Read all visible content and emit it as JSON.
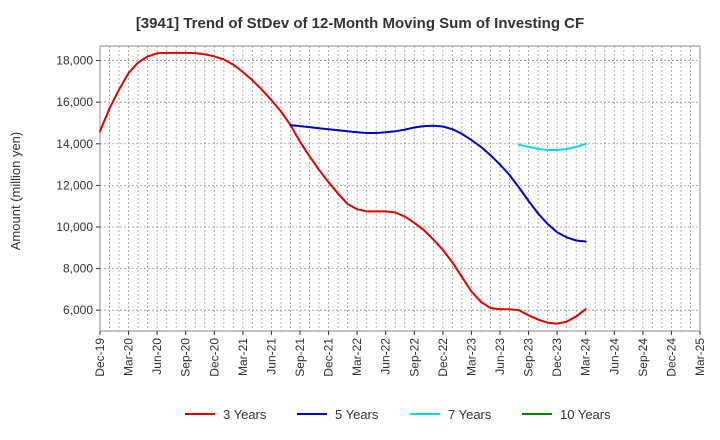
{
  "chart_data": {
    "type": "line",
    "title": "[3941]  Trend of StDev of 12-Month Moving Sum of Investing CF",
    "xlabel": "",
    "ylabel": "Amount (million yen)",
    "ylim": [
      5000,
      18700
    ],
    "y_ticks": [
      6000,
      8000,
      10000,
      12000,
      14000,
      16000,
      18000
    ],
    "y_tick_labels": [
      "6,000",
      "8,000",
      "10,000",
      "12,000",
      "14,000",
      "16,000",
      "18,000"
    ],
    "x_start": "Dec-19",
    "x_end": "Mar-25",
    "x_tick_labels": [
      "Dec-19",
      "Mar-20",
      "Jun-20",
      "Sep-20",
      "Dec-20",
      "Mar-21",
      "Jun-21",
      "Sep-21",
      "Dec-21",
      "Mar-22",
      "Jun-22",
      "Sep-22",
      "Dec-22",
      "Mar-23",
      "Jun-23",
      "Sep-23",
      "Dec-23",
      "Mar-24",
      "Jun-24",
      "Sep-24",
      "Dec-24",
      "Mar-25"
    ],
    "grid": true,
    "legend_position": "bottom",
    "series": [
      {
        "name": "3 Years",
        "color": "#e00000",
        "x": [
          "Dec-19",
          "Jan-20",
          "Feb-20",
          "Mar-20",
          "Apr-20",
          "May-20",
          "Jun-20",
          "Jul-20",
          "Aug-20",
          "Sep-20",
          "Oct-20",
          "Nov-20",
          "Dec-20",
          "Jan-21",
          "Feb-21",
          "Mar-21",
          "Apr-21",
          "May-21",
          "Jun-21",
          "Jul-21",
          "Aug-21",
          "Sep-21",
          "Oct-21",
          "Nov-21",
          "Dec-21",
          "Jan-22",
          "Feb-22",
          "Mar-22",
          "Apr-22",
          "May-22",
          "Jun-22",
          "Jul-22",
          "Aug-22",
          "Sep-22",
          "Oct-22",
          "Nov-22",
          "Dec-22",
          "Jan-23",
          "Feb-23",
          "Mar-23",
          "Apr-23",
          "May-23",
          "Jun-23",
          "Jul-23",
          "Aug-23",
          "Sep-23",
          "Oct-23",
          "Nov-23",
          "Dec-23",
          "Jan-24",
          "Feb-24",
          "Mar-24"
        ],
        "values": [
          14600,
          15700,
          16600,
          17400,
          17900,
          18200,
          18350,
          18370,
          18370,
          18370,
          18360,
          18300,
          18200,
          18050,
          17800,
          17450,
          17050,
          16600,
          16100,
          15550,
          14900,
          14100,
          13400,
          12750,
          12150,
          11600,
          11100,
          10850,
          10750,
          10750,
          10750,
          10700,
          10500,
          10200,
          9850,
          9400,
          8900,
          8300,
          7600,
          6900,
          6400,
          6100,
          6050,
          6050,
          6000,
          5750,
          5550,
          5400,
          5350,
          5450,
          5700,
          6050
        ]
      },
      {
        "name": "5 Years",
        "color": "#0000cc",
        "x": [
          "Aug-21",
          "Sep-21",
          "Oct-21",
          "Nov-21",
          "Dec-21",
          "Jan-22",
          "Feb-22",
          "Mar-22",
          "Apr-22",
          "May-22",
          "Jun-22",
          "Jul-22",
          "Aug-22",
          "Sep-22",
          "Oct-22",
          "Nov-22",
          "Dec-22",
          "Jan-23",
          "Feb-23",
          "Mar-23",
          "Apr-23",
          "May-23",
          "Jun-23",
          "Jul-23",
          "Aug-23",
          "Sep-23",
          "Oct-23",
          "Nov-23",
          "Dec-23",
          "Jan-24",
          "Feb-24",
          "Mar-24"
        ],
        "values": [
          14900,
          14850,
          14800,
          14750,
          14700,
          14650,
          14600,
          14550,
          14520,
          14520,
          14550,
          14600,
          14680,
          14780,
          14850,
          14870,
          14830,
          14700,
          14480,
          14180,
          13850,
          13450,
          13000,
          12500,
          11900,
          11250,
          10650,
          10150,
          9750,
          9500,
          9350,
          9300
        ]
      },
      {
        "name": "7 Years",
        "color": "#00e0e0",
        "x": [
          "Aug-23",
          "Sep-23",
          "Oct-23",
          "Nov-23",
          "Dec-23",
          "Jan-24",
          "Feb-24",
          "Mar-24"
        ],
        "values": [
          13950,
          13850,
          13750,
          13700,
          13700,
          13750,
          13850,
          14000
        ]
      },
      {
        "name": "10 Years",
        "color": "#008000",
        "x": [],
        "values": []
      }
    ]
  }
}
